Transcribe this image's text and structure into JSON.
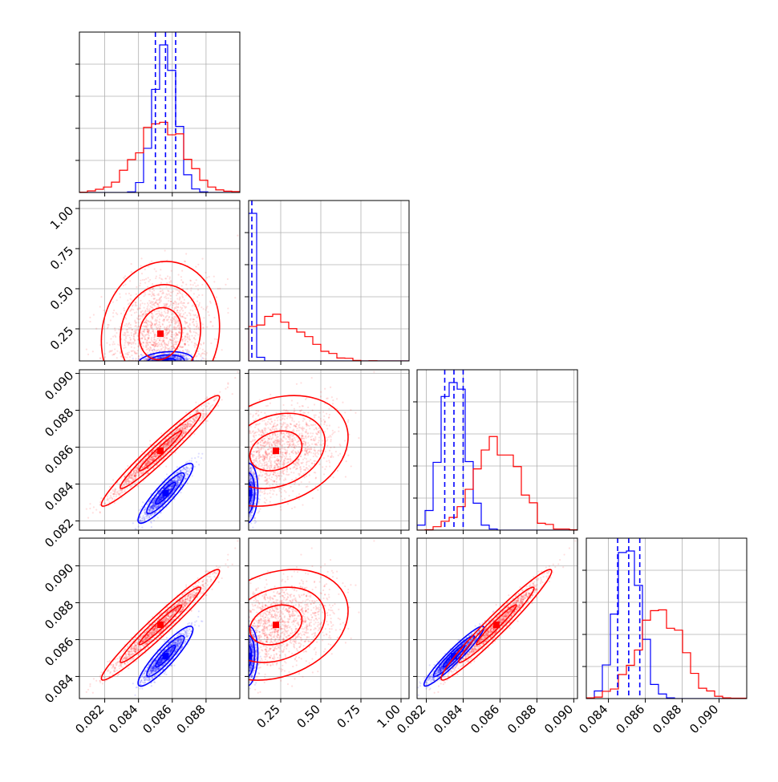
{
  "chart_data": {
    "type": "corner",
    "dimensions": 4,
    "title": "",
    "grid": true,
    "series": [
      {
        "color": "#0000ff",
        "mean": [
          0.0856,
          0.045,
          0.0835,
          0.0851
        ],
        "sd": [
          0.00065,
          0.025,
          0.00065,
          0.00065
        ],
        "corr": [
          [
            1,
            0.2,
            0.9,
            0.9
          ],
          [
            0.2,
            1,
            0.1,
            0.1
          ],
          [
            0.9,
            0.1,
            1,
            0.95
          ],
          [
            0.9,
            0.1,
            0.95,
            1
          ]
        ]
      },
      {
        "color": "#ff0000",
        "mean": [
          0.0853,
          0.22,
          0.0858,
          0.0868
        ],
        "sd": [
          0.0014,
          0.18,
          0.0012,
          0.0012
        ],
        "corr": [
          [
            1,
            0.1,
            0.97,
            0.97
          ],
          [
            0.1,
            1,
            0.25,
            0.25
          ],
          [
            0.97,
            0.25,
            1,
            0.97
          ],
          [
            0.97,
            0.25,
            0.97,
            1
          ]
        ]
      }
    ],
    "quantile_lines": {
      "color": "#0000ff",
      "dim0": [
        0.085,
        0.0856,
        0.0862
      ],
      "dim1": [
        0.022,
        0.045,
        0.07
      ],
      "dim2": [
        0.083,
        0.0835,
        0.084
      ],
      "dim3": [
        0.0845,
        0.0851,
        0.0857
      ]
    },
    "axes": [
      {
        "range": [
          0.0805,
          0.09
        ],
        "ticks": [
          0.082,
          0.084,
          0.086,
          0.088
        ],
        "labels": [
          "0.082",
          "0.084",
          "0.086",
          "0.088"
        ]
      },
      {
        "range": [
          0.05,
          1.05
        ],
        "ticks": [
          0.25,
          0.5,
          0.75,
          1.0
        ],
        "labels": [
          "0.25",
          "0.50",
          "0.75",
          "1.00"
        ],
        "diag_ticks": [
          0.25,
          0.5,
          0.75,
          1.0
        ],
        "diag_labels": [
          "0.25",
          "0.50",
          "0.75",
          "1.00"
        ]
      },
      {
        "range": [
          0.0815,
          0.0902
        ],
        "ticks": [
          0.082,
          0.084,
          0.086,
          0.088,
          0.09
        ],
        "labels": [
          "0.082",
          "0.084",
          "0.086",
          "0.088",
          "0.090"
        ],
        "diag_ticks": [
          0.082,
          0.084,
          0.086,
          0.088,
          0.09
        ],
        "diag_labels": [
          "0.082",
          "0.084",
          "0.086",
          "0.088",
          "0.090"
        ]
      },
      {
        "range": [
          0.0828,
          0.0915
        ],
        "ticks": [
          0.084,
          0.086,
          0.088,
          0.09
        ],
        "labels": [
          "0.084",
          "0.086",
          "0.088",
          "0.090"
        ],
        "diag_ticks": [
          0.084,
          0.086,
          0.088,
          0.09
        ],
        "diag_labels": [
          "0.084",
          "0.086",
          "0.088",
          "0.090"
        ]
      }
    ]
  }
}
